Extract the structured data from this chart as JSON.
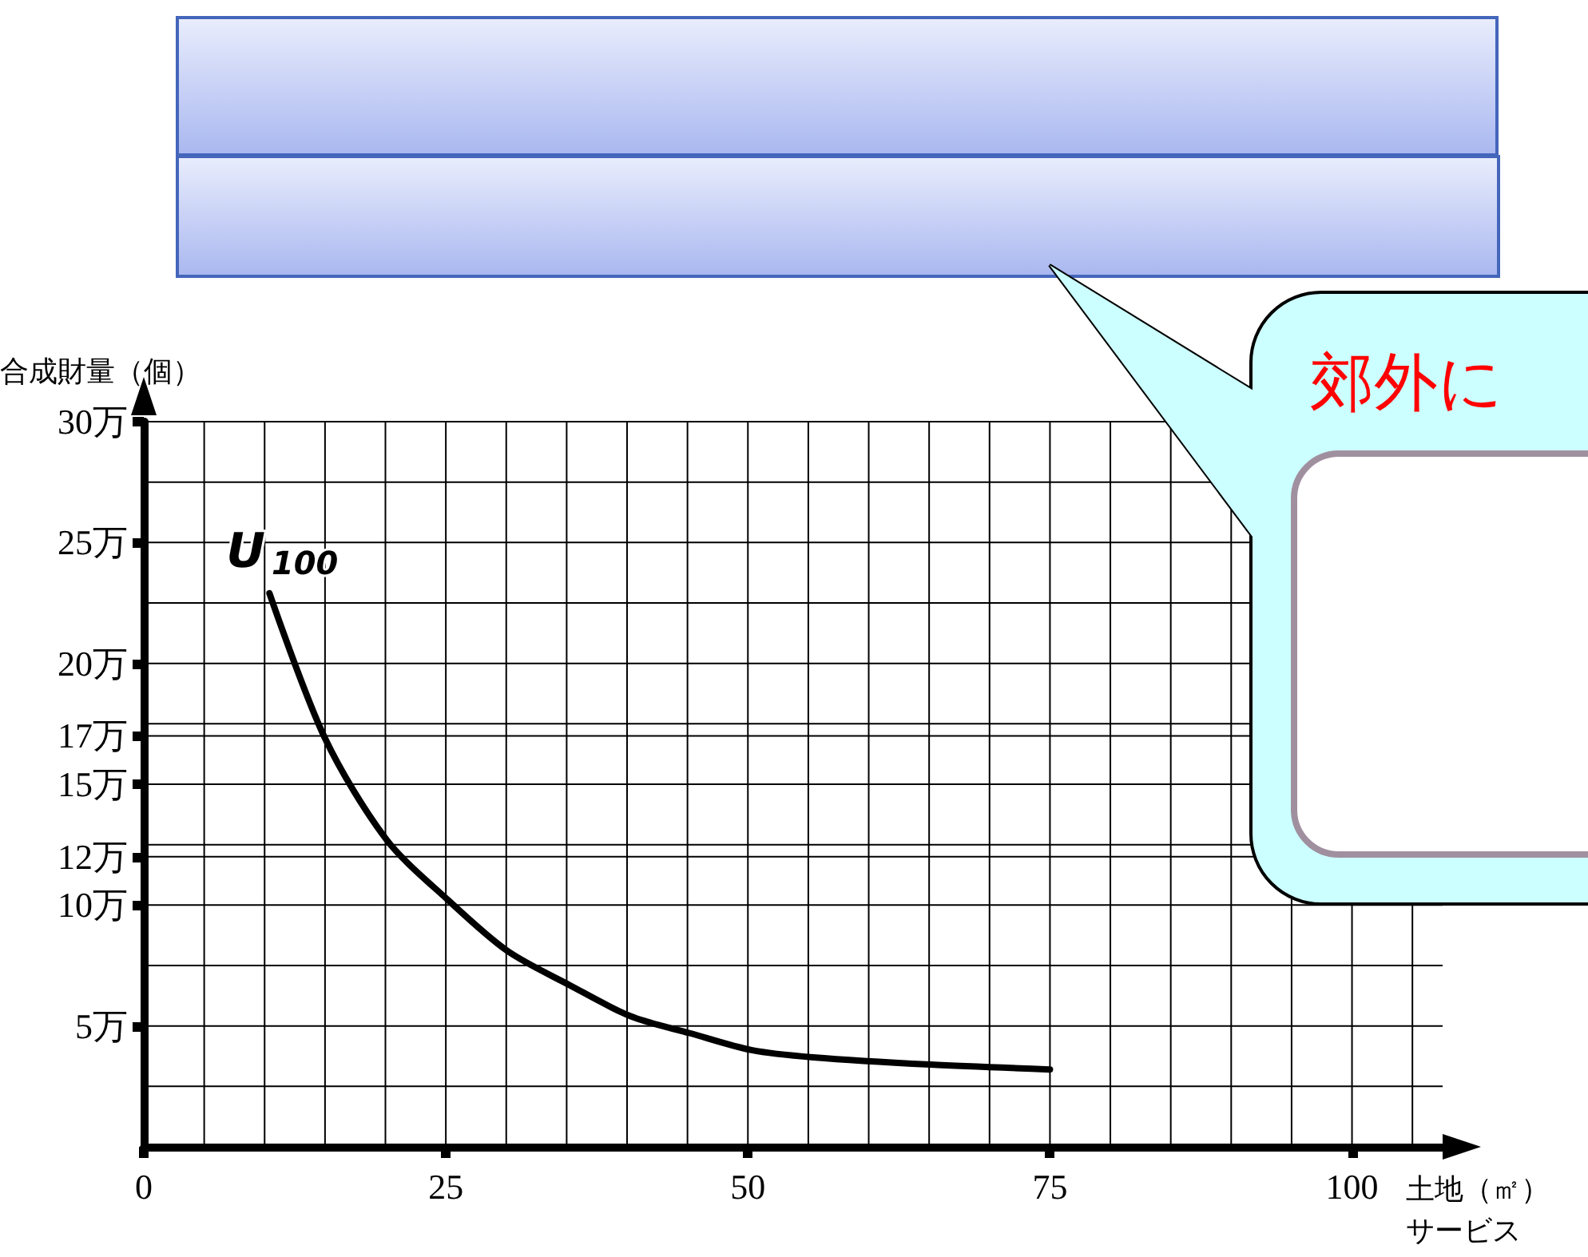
{
  "chart_data": {
    "type": "line",
    "ylabel": "合成財量（個）",
    "xlabel": "土地（㎡）サービス",
    "annotations": [
      "郊外に"
    ],
    "x": [
      10.4,
      15.0,
      20.1,
      25.2,
      30.1,
      35.2,
      40.3,
      45.2,
      50.3,
      55.4,
      65.1,
      75.0
    ],
    "series": [
      {
        "name": "U$_{100}$",
        "color": "#000000",
        "values": [
          22.9,
          16.9,
          12.7,
          10.2,
          8.1,
          6.7,
          5.4,
          4.7,
          4.0,
          3.7,
          3.4,
          3.2
        ]
      }
    ],
    "xlim": [
      0,
      107.5
    ],
    "xticks": [
      0,
      {
        "value": 5,
        "label": null
      },
      {
        "value": 10,
        "label": null
      },
      {
        "value": 15,
        "label": null
      },
      {
        "value": 20,
        "label": null
      },
      25,
      {
        "value": 30,
        "label": null
      },
      {
        "value": 35,
        "label": null
      },
      {
        "value": 40,
        "label": null
      },
      {
        "value": 45,
        "label": null
      },
      50,
      {
        "value": 55,
        "label": null
      },
      {
        "value": 60,
        "label": null
      },
      {
        "value": 65,
        "label": null
      },
      {
        "value": 70,
        "label": null
      },
      75,
      {
        "value": 80,
        "label": null
      },
      {
        "value": 85,
        "label": null
      },
      {
        "value": 90,
        "label": null
      },
      {
        "value": 95,
        "label": null
      },
      100,
      {
        "value": 105,
        "label": null
      }
    ],
    "ylim": [
      0,
      30
    ],
    "yticks": [
      {
        "value": 2.5,
        "label": null
      },
      {
        "value": 5,
        "label": "5万"
      },
      {
        "value": 7.5,
        "label": null
      },
      {
        "value": 10,
        "label": "10万"
      },
      {
        "value": 12,
        "label": "12万"
      },
      {
        "value": 12.5,
        "label": null
      },
      {
        "value": 15,
        "label": "15万"
      },
      {
        "value": 17,
        "label": "17万"
      },
      {
        "value": 17.5,
        "label": null
      },
      {
        "value": 20,
        "label": "20万"
      },
      {
        "value": 22.5,
        "label": null
      },
      {
        "value": 25,
        "label": "25万"
      },
      {
        "value": 27.5,
        "label": null
      },
      {
        "value": 30,
        "label": "30万"
      }
    ],
    "grid": true,
    "marker": "none",
    "line_style": "solid",
    "legend": false
  }
}
